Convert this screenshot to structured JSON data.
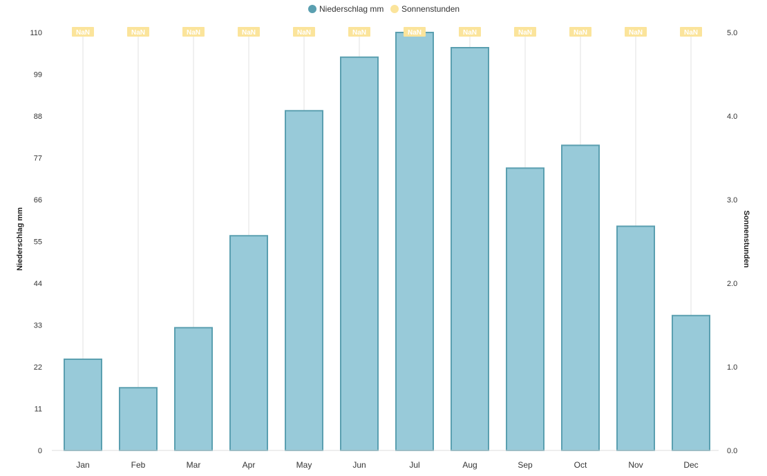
{
  "chart_data": {
    "type": "bar",
    "categories": [
      "Jan",
      "Feb",
      "Mar",
      "Apr",
      "May",
      "Jun",
      "Jul",
      "Aug",
      "Sep",
      "Oct",
      "Nov",
      "Dec"
    ],
    "series": [
      {
        "name": "Niederschlag mm",
        "type": "bar",
        "axis": "left",
        "color": "#98cad9",
        "border_color": "#5a9fb0",
        "values": [
          24,
          16.5,
          32.3,
          56.5,
          89.4,
          103.5,
          110,
          106,
          74.3,
          80.3,
          59,
          35.5
        ]
      },
      {
        "name": "Sonnenstunden",
        "type": "line",
        "axis": "right",
        "color": "#fbe49b",
        "values": [
          null,
          null,
          null,
          null,
          null,
          null,
          null,
          null,
          null,
          null,
          null,
          null
        ],
        "point_label": "NaN"
      }
    ],
    "y_left": {
      "label": "Niederschlag mm",
      "range": [
        0,
        110
      ],
      "ticks": [
        "0",
        "11",
        "22",
        "33",
        "44",
        "55",
        "66",
        "77",
        "88",
        "99",
        "110"
      ]
    },
    "y_right": {
      "label": "Sonnenstunden",
      "range": [
        0,
        5
      ],
      "ticks": [
        "0.0",
        "1.0",
        "2.0",
        "3.0",
        "4.0",
        "5.0"
      ]
    },
    "grid": {
      "vertical_category_lines": true,
      "horizontal": false
    },
    "legend": {
      "placement": "top-center",
      "items": [
        {
          "label": "Niederschlag mm",
          "color": "#5a9fb0"
        },
        {
          "label": "Sonnenstunden",
          "color": "#fbe49b"
        }
      ]
    }
  }
}
